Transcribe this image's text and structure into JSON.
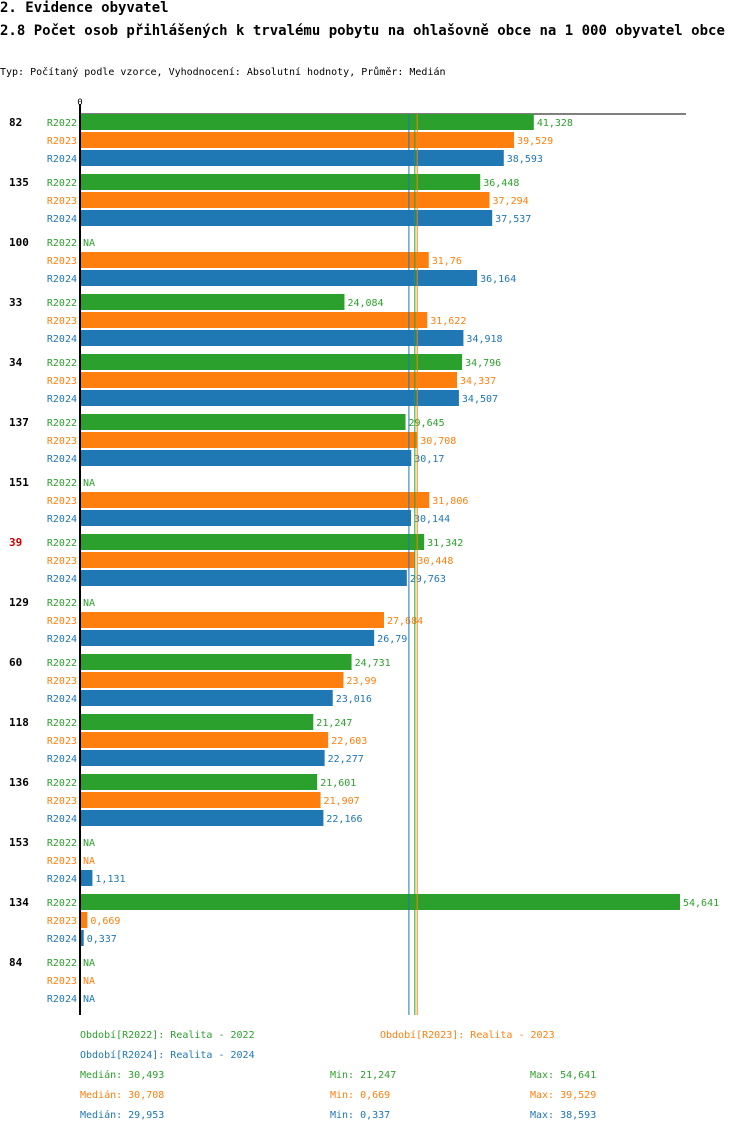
{
  "header": {
    "section": "2. Evidence obyvatel",
    "title": "2.8 Počet osob přihlášených k trvalému pobytu na ohlašovně obce na 1 000 obyvatel obce",
    "subtitle": "Typ: Počítaný podle vzorce, Vyhodnocení: Absolutní hodnoty, Průměr: Medián"
  },
  "colors": {
    "R2022": "#2ca02c",
    "R2023": "#ff7f0e",
    "R2024": "#1f77b4",
    "highlight": "#cc0000",
    "axis": "#000000"
  },
  "chart_data": {
    "type": "bar",
    "orientation": "horizontal",
    "axis_zero_label": "0",
    "xlim": [
      0,
      55
    ],
    "series_names": [
      "R2022",
      "R2023",
      "R2024"
    ],
    "categories": [
      {
        "id": "82",
        "highlight": false,
        "values": [
          41.328,
          39.529,
          38.593
        ],
        "labels": [
          "41,328",
          "39,529",
          "38,593"
        ]
      },
      {
        "id": "135",
        "highlight": false,
        "values": [
          36.448,
          37.294,
          37.537
        ],
        "labels": [
          "36,448",
          "37,294",
          "37,537"
        ]
      },
      {
        "id": "100",
        "highlight": false,
        "values": [
          null,
          31.76,
          36.164
        ],
        "labels": [
          "NA",
          "31,76",
          "36,164"
        ]
      },
      {
        "id": "33",
        "highlight": false,
        "values": [
          24.084,
          31.622,
          34.918
        ],
        "labels": [
          "24,084",
          "31,622",
          "34,918"
        ]
      },
      {
        "id": "34",
        "highlight": false,
        "values": [
          34.796,
          34.337,
          34.507
        ],
        "labels": [
          "34,796",
          "34,337",
          "34,507"
        ]
      },
      {
        "id": "137",
        "highlight": false,
        "values": [
          29.645,
          30.708,
          30.17
        ],
        "labels": [
          "29,645",
          "30,708",
          "30,17"
        ]
      },
      {
        "id": "151",
        "highlight": false,
        "values": [
          null,
          31.806,
          30.144
        ],
        "labels": [
          "NA",
          "31,806",
          "30,144"
        ]
      },
      {
        "id": "39",
        "highlight": true,
        "values": [
          31.342,
          30.448,
          29.763
        ],
        "labels": [
          "31,342",
          "30,448",
          "29,763"
        ]
      },
      {
        "id": "129",
        "highlight": false,
        "values": [
          null,
          27.684,
          26.79
        ],
        "labels": [
          "NA",
          "27,684",
          "26,79"
        ]
      },
      {
        "id": "60",
        "highlight": false,
        "values": [
          24.731,
          23.99,
          23.016
        ],
        "labels": [
          "24,731",
          "23,99",
          "23,016"
        ]
      },
      {
        "id": "118",
        "highlight": false,
        "values": [
          21.247,
          22.603,
          22.277
        ],
        "labels": [
          "21,247",
          "22,603",
          "22,277"
        ]
      },
      {
        "id": "136",
        "highlight": false,
        "values": [
          21.601,
          21.907,
          22.166
        ],
        "labels": [
          "21,601",
          "21,907",
          "22,166"
        ]
      },
      {
        "id": "153",
        "highlight": false,
        "values": [
          null,
          null,
          1.131
        ],
        "labels": [
          "NA",
          "NA",
          "1,131"
        ]
      },
      {
        "id": "134",
        "highlight": false,
        "values": [
          54.641,
          0.669,
          0.337
        ],
        "labels": [
          "54,641",
          "0,669",
          "0,337"
        ]
      },
      {
        "id": "84",
        "highlight": false,
        "values": [
          null,
          null,
          null
        ],
        "labels": [
          "NA",
          "NA",
          "NA"
        ]
      }
    ],
    "medians": [
      30.493,
      30.708,
      29.953
    ]
  },
  "legend": {
    "period_r2022": "Období[R2022]: Realita - 2022",
    "period_r2023": "Období[R2023]: Realita - 2023",
    "period_r2024": "Období[R2024]: Realita - 2024",
    "stats": [
      {
        "median": "Medián: 30,493",
        "min": "Min: 21,247",
        "max": "Max: 54,641"
      },
      {
        "median": "Medián: 30,708",
        "min": "Min: 0,669",
        "max": "Max: 39,529"
      },
      {
        "median": "Medián: 29,953",
        "min": "Min: 0,337",
        "max": "Max: 38,593"
      }
    ]
  }
}
